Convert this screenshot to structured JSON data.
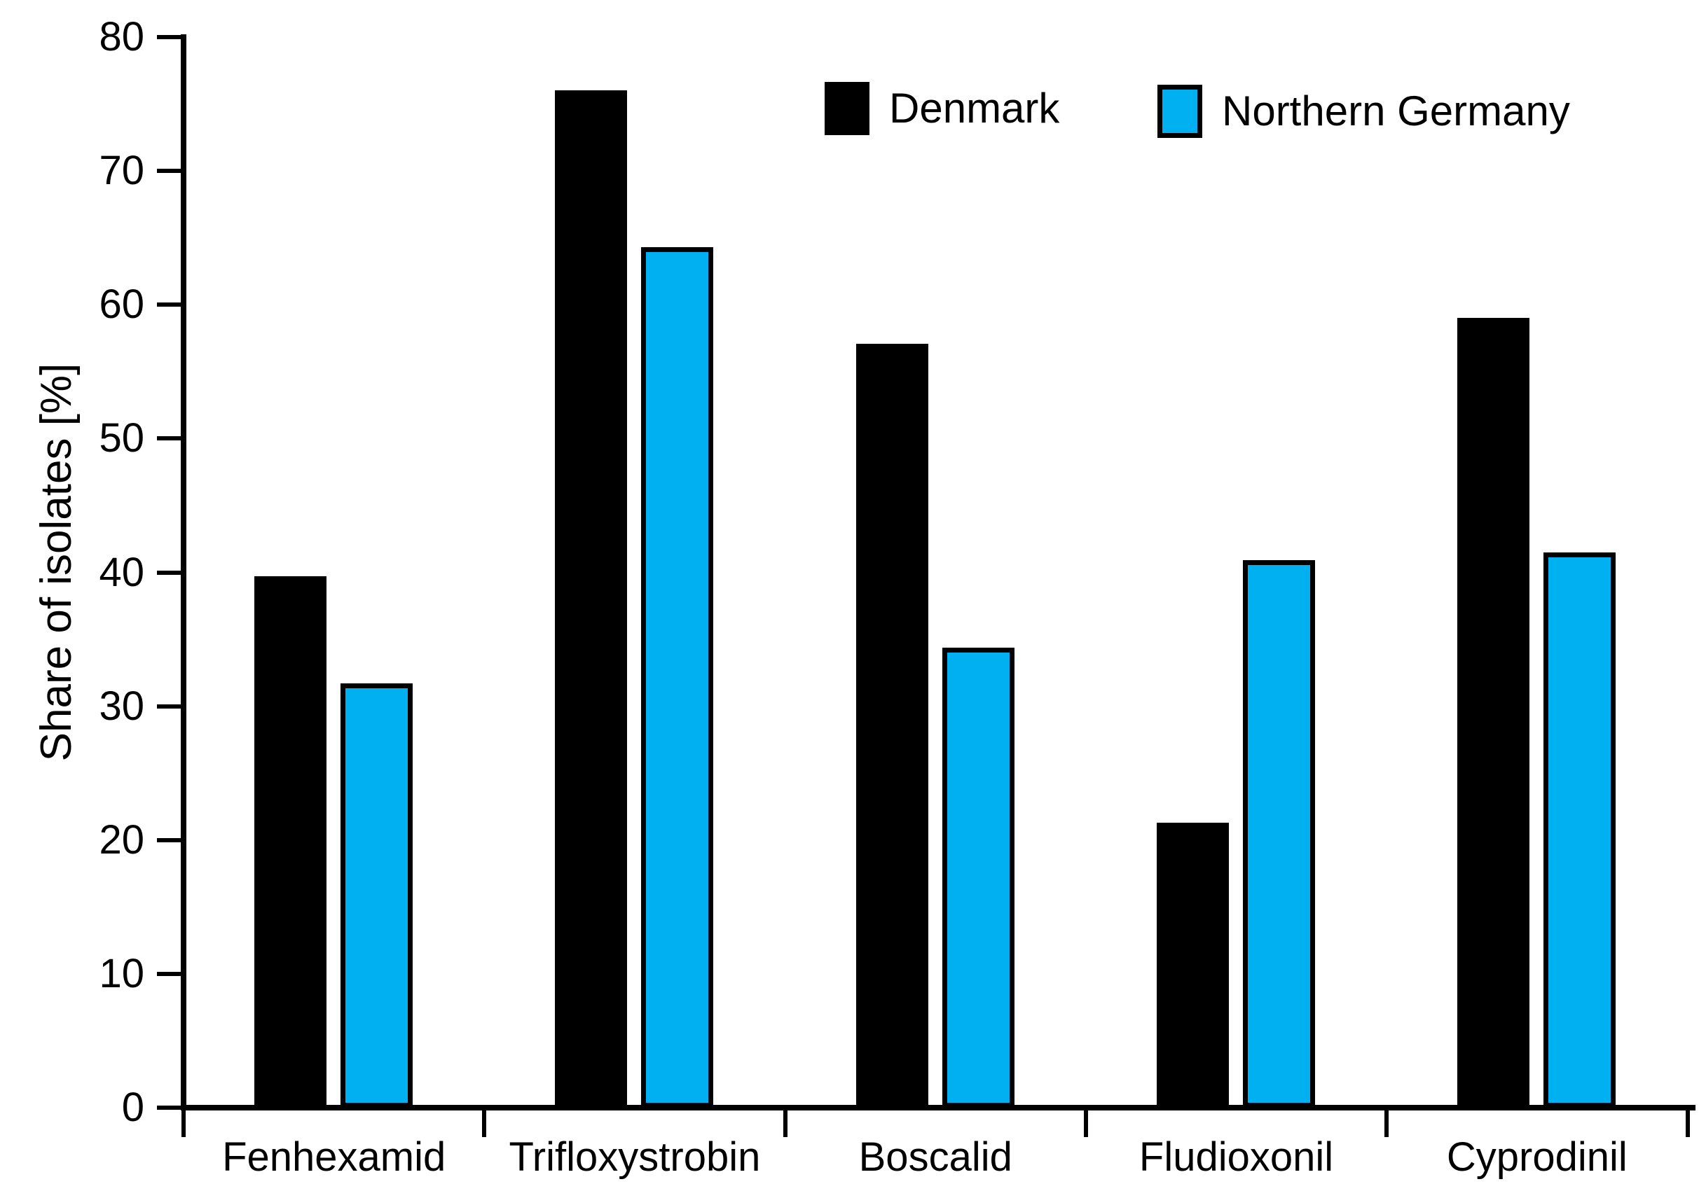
{
  "chart_data": {
    "type": "bar",
    "title": "",
    "categories": [
      "Fenhexamid",
      "Trifloxystrobin",
      "Boscalid",
      "Fludioxonil",
      "Cyprodinil"
    ],
    "series": [
      {
        "name": "Denmark",
        "color": "#000000",
        "outlined": false,
        "values": [
          39.7,
          76.0,
          57.1,
          21.3,
          59.0
        ]
      },
      {
        "name": "Northern Germany",
        "color": "#00B0F0",
        "outlined": true,
        "values": [
          31.7,
          64.3,
          34.4,
          40.9,
          41.5
        ]
      }
    ],
    "xlabel": "",
    "ylabel": "Share of isolates [%]",
    "ylim": [
      0,
      80
    ],
    "ytick_step": 10,
    "ytick_values": [
      0,
      10,
      20,
      30,
      40,
      50,
      60,
      70,
      80
    ],
    "grid": false,
    "legend_position": "top-center",
    "bar_outline_color": "#000000",
    "axis_color": "#000000"
  }
}
